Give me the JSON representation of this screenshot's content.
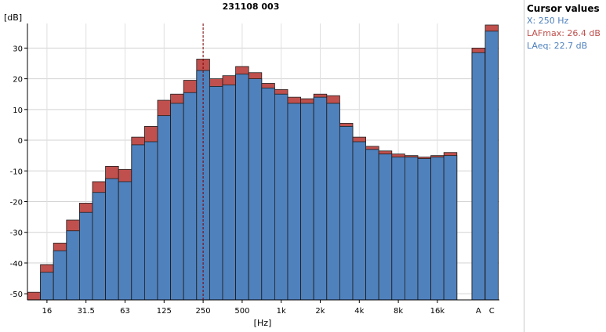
{
  "chart_data": {
    "type": "bar",
    "title": "231108 003",
    "ylabel": "[dB]",
    "xlabel": "[Hz]",
    "ylim": [
      -52,
      38
    ],
    "yticks": [
      30,
      20,
      10,
      0,
      -10,
      -20,
      -30,
      -40,
      -50
    ],
    "grid": true,
    "categories": [
      "12.5",
      "16",
      "20",
      "25",
      "31.5",
      "40",
      "50",
      "63",
      "80",
      "100",
      "125",
      "160",
      "200",
      "250",
      "315",
      "400",
      "500",
      "630",
      "800",
      "1k",
      "1.25k",
      "1.6k",
      "2k",
      "2.5k",
      "3.15k",
      "4k",
      "5k",
      "6.3k",
      "8k",
      "10k",
      "12.5k",
      "16k",
      "20k"
    ],
    "tick_labels": [
      "16",
      "31.5",
      "63",
      "125",
      "250",
      "500",
      "1k",
      "2k",
      "4k",
      "8k",
      "16k"
    ],
    "series": [
      {
        "name": "LAFmax",
        "color": "#c0504d",
        "values": [
          -49.5,
          -40.5,
          -33.5,
          -26.0,
          -20.5,
          -13.5,
          -8.5,
          -9.5,
          1.0,
          4.5,
          13.0,
          15.0,
          19.5,
          26.4,
          20.0,
          21.0,
          24.0,
          22.0,
          18.5,
          16.5,
          14.0,
          13.5,
          15.0,
          14.5,
          5.5,
          1.0,
          -2.0,
          -3.5,
          -4.5,
          -5.0,
          -5.5,
          -5.0,
          -4.0
        ]
      },
      {
        "name": "LAeq",
        "color": "#4f81bd",
        "values": [
          -53.0,
          -43.0,
          -36.0,
          -29.5,
          -23.5,
          -17.0,
          -12.5,
          -13.5,
          -1.5,
          -0.5,
          8.0,
          12.0,
          15.5,
          22.7,
          17.5,
          18.0,
          21.5,
          20.0,
          17.0,
          15.0,
          12.0,
          12.0,
          14.0,
          12.0,
          4.5,
          -0.5,
          -3.0,
          -4.5,
          -5.5,
          -5.5,
          -6.0,
          -5.5,
          -5.0
        ]
      }
    ],
    "overall": {
      "labels": [
        "A",
        "C"
      ],
      "series": [
        {
          "name": "LAFmax",
          "values": [
            30.0,
            37.5
          ]
        },
        {
          "name": "LAeq",
          "values": [
            28.5,
            35.5
          ]
        }
      ]
    },
    "cursor_x": "250"
  },
  "cursor_panel": {
    "title": "Cursor values",
    "x_text": "X: 250 Hz",
    "max_text": "LAFmax: 26.4 dB",
    "eq_text": "LAeq: 22.7 dB",
    "x_color": "#4f81bd",
    "max_color": "#c0504d",
    "eq_color": "#4f81bd"
  }
}
